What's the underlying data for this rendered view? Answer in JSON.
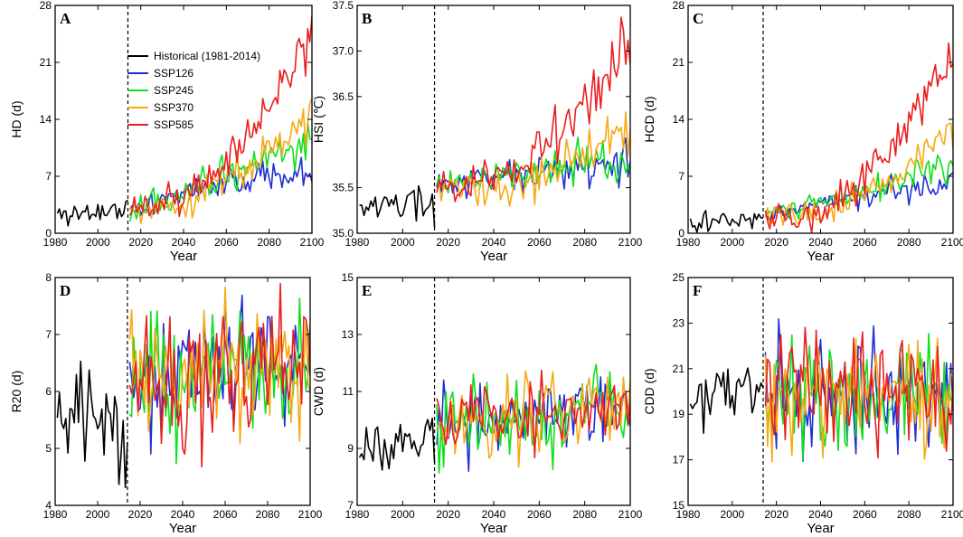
{
  "colors": {
    "historical": "#000000",
    "ssp126": "#1f2fd6",
    "ssp245": "#0ee01c",
    "ssp370": "#f8a912",
    "ssp585": "#ea1f1f"
  },
  "legend": {
    "historical": "Historical (1981-2014)",
    "ssp126": "SSP126",
    "ssp245": "SSP245",
    "ssp370": "SSP370",
    "ssp585": "SSP585"
  },
  "chart_data": [
    {
      "id": "A",
      "type": "line",
      "ylabel": "HD (d)",
      "xlabel": "Year",
      "ylim": [
        0,
        28
      ],
      "yticks": [
        "0",
        "7",
        "14",
        "21",
        "28"
      ],
      "xlim": [
        1980,
        2100
      ],
      "xticks": [
        "1980",
        "2000",
        "2020",
        "2040",
        "2060",
        "2080",
        "2100"
      ],
      "split_year": 2014,
      "hist": {
        "start": 2.2,
        "end": 3.0,
        "noise": 0.8
      },
      "ssp126": {
        "start": 3.0,
        "mid": 6.0,
        "end": 7.5,
        "noise": 0.9
      },
      "ssp245": {
        "start": 3.0,
        "mid": 7.0,
        "end": 10.5,
        "noise": 1.0
      },
      "ssp370": {
        "start": 3.0,
        "mid": 6.0,
        "end": 15.5,
        "noise": 1.2
      },
      "ssp585": {
        "start": 3.0,
        "mid": 8.0,
        "end": 24.5,
        "noise": 1.3
      }
    },
    {
      "id": "B",
      "type": "line",
      "ylabel": "HSI (℃)",
      "xlabel": "Year",
      "ylim": [
        35.0,
        37.5
      ],
      "yticks": [
        "35.0",
        "35.5",
        "36.5",
        "37.0",
        "37.5"
      ],
      "ytick_values": [
        35.0,
        35.5,
        36.5,
        37.0,
        37.5
      ],
      "xlim": [
        1980,
        2100
      ],
      "xticks": [
        "1980",
        "2000",
        "2020",
        "2040",
        "2060",
        "2080",
        "2100"
      ],
      "split_year": 2014,
      "hist": {
        "start": 35.3,
        "end": 35.3,
        "noise": 0.12
      },
      "ssp126": {
        "start": 35.5,
        "mid": 35.65,
        "end": 35.7,
        "noise": 0.1
      },
      "ssp245": {
        "start": 35.5,
        "mid": 35.7,
        "end": 35.85,
        "noise": 0.1
      },
      "ssp370": {
        "start": 35.5,
        "mid": 35.6,
        "end": 36.2,
        "noise": 0.12
      },
      "ssp585": {
        "start": 35.5,
        "mid": 35.85,
        "end": 37.15,
        "noise": 0.12
      }
    },
    {
      "id": "C",
      "type": "line",
      "ylabel": "HCD (d)",
      "xlabel": "Year",
      "ylim": [
        0,
        28
      ],
      "yticks": [
        "0",
        "7",
        "14",
        "21",
        "28"
      ],
      "xlim": [
        1980,
        2100
      ],
      "xticks": [
        "1980",
        "2000",
        "2020",
        "2040",
        "2060",
        "2080",
        "2100"
      ],
      "split_year": 2014,
      "hist": {
        "start": 1.2,
        "end": 2.2,
        "noise": 0.6
      },
      "ssp126": {
        "start": 2.2,
        "mid": 4.5,
        "end": 5.8,
        "noise": 0.7
      },
      "ssp245": {
        "start": 2.2,
        "mid": 5.0,
        "end": 8.5,
        "noise": 0.8
      },
      "ssp370": {
        "start": 2.2,
        "mid": 4.5,
        "end": 13.0,
        "noise": 1.0
      },
      "ssp585": {
        "start": 2.2,
        "mid": 6.0,
        "end": 23.0,
        "noise": 1.2
      }
    },
    {
      "id": "D",
      "type": "line",
      "ylabel": "R20 (d)",
      "xlabel": "Year",
      "ylim": [
        4,
        8
      ],
      "yticks": [
        "4",
        "5",
        "6",
        "7",
        "8"
      ],
      "xlim": [
        1980,
        2100
      ],
      "xticks": [
        "1980",
        "2000",
        "2020",
        "2040",
        "2060",
        "2080",
        "2100"
      ],
      "split_year": 2014,
      "hist": {
        "start": 5.6,
        "end": 5.5,
        "noise": 0.5
      },
      "ssp126": {
        "start": 6.1,
        "mid": 6.3,
        "end": 6.5,
        "noise": 0.55
      },
      "ssp245": {
        "start": 6.1,
        "mid": 6.3,
        "end": 6.6,
        "noise": 0.55
      },
      "ssp370": {
        "start": 6.1,
        "mid": 6.3,
        "end": 6.6,
        "noise": 0.55
      },
      "ssp585": {
        "start": 6.1,
        "mid": 6.3,
        "end": 6.6,
        "noise": 0.55
      }
    },
    {
      "id": "E",
      "type": "line",
      "ylabel": "CWD (d)",
      "xlabel": "Year",
      "ylim": [
        7,
        15
      ],
      "yticks": [
        "7",
        "9",
        "11",
        "13",
        "15"
      ],
      "xlim": [
        1980,
        2100
      ],
      "xticks": [
        "1980",
        "2000",
        "2020",
        "2040",
        "2060",
        "2080",
        "2100"
      ],
      "split_year": 2014,
      "hist": {
        "start": 8.8,
        "end": 9.5,
        "noise": 0.45
      },
      "ssp126": {
        "start": 9.9,
        "mid": 10.2,
        "end": 10.4,
        "noise": 0.7
      },
      "ssp245": {
        "start": 9.9,
        "mid": 10.0,
        "end": 10.4,
        "noise": 0.7
      },
      "ssp370": {
        "start": 9.9,
        "mid": 10.0,
        "end": 10.5,
        "noise": 0.7
      },
      "ssp585": {
        "start": 9.9,
        "mid": 10.1,
        "end": 10.5,
        "noise": 0.7
      }
    },
    {
      "id": "F",
      "type": "line",
      "ylabel": "CDD (d)",
      "xlabel": "Year",
      "ylim": [
        15,
        25
      ],
      "yticks": [
        "15",
        "17",
        "19",
        "21",
        "23",
        "25"
      ],
      "xlim": [
        1980,
        2100
      ],
      "xticks": [
        "1980",
        "2000",
        "2020",
        "2040",
        "2060",
        "2080",
        "2100"
      ],
      "split_year": 2014,
      "hist": {
        "start": 19.6,
        "end": 20.2,
        "noise": 0.9
      },
      "ssp126": {
        "start": 19.8,
        "mid": 19.8,
        "end": 19.9,
        "noise": 1.3
      },
      "ssp245": {
        "start": 19.8,
        "mid": 19.8,
        "end": 19.9,
        "noise": 1.3
      },
      "ssp370": {
        "start": 19.8,
        "mid": 19.8,
        "end": 19.9,
        "noise": 1.3
      },
      "ssp585": {
        "start": 19.8,
        "mid": 19.8,
        "end": 19.9,
        "noise": 1.3
      }
    }
  ]
}
